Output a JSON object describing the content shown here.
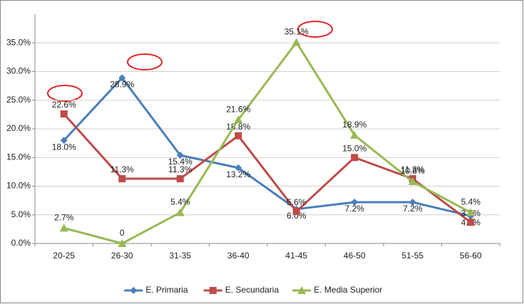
{
  "chart_data": {
    "type": "line",
    "categories": [
      "20-25",
      "26-30",
      "31-35",
      "36-40",
      "41-45",
      "46-50",
      "51-55",
      "56-60"
    ],
    "series": [
      {
        "name": "E. Primaria",
        "color": "#4a7ebb",
        "marker": "diamond",
        "values": [
          18.0,
          28.9,
          15.4,
          13.2,
          6.0,
          7.2,
          7.2,
          4.8
        ],
        "value_labels": [
          "18.0%",
          "28.9%",
          "15.4%",
          "13.2%",
          "6.0%",
          "7.2%",
          "7.2%",
          "4.8%"
        ]
      },
      {
        "name": "E. Secundaria",
        "color": "#be4b48",
        "marker": "square",
        "values": [
          22.6,
          11.3,
          11.3,
          18.8,
          5.6,
          15.0,
          11.3,
          3.7
        ],
        "value_labels": [
          "22.6%",
          "11.3%",
          "11.3%",
          "18.8%",
          "5.6%",
          "15.0%",
          "11.3%",
          "3.7%"
        ]
      },
      {
        "name": "E. Media Superior",
        "color": "#98b954",
        "marker": "triangle",
        "values": [
          2.7,
          0,
          5.4,
          21.6,
          35.1,
          18.9,
          10.8,
          5.4
        ],
        "value_labels": [
          "2.7%",
          "0",
          "5.4%",
          "21.6%",
          "35.1%",
          "18.9%",
          "10.8%",
          "5.4%"
        ]
      }
    ],
    "ylim": [
      0,
      40
    ],
    "yticks": [
      {
        "value": 0,
        "label": "0.0%"
      },
      {
        "value": 5,
        "label": "5.0%"
      },
      {
        "value": 10,
        "label": "10.0%"
      },
      {
        "value": 15,
        "label": "15.0%"
      },
      {
        "value": 20,
        "label": "20.0%"
      },
      {
        "value": 25,
        "label": "25.0%"
      },
      {
        "value": 30,
        "label": "30.0%"
      },
      {
        "value": 35,
        "label": "35.0%"
      }
    ],
    "grid": true,
    "legend": "bottom"
  }
}
